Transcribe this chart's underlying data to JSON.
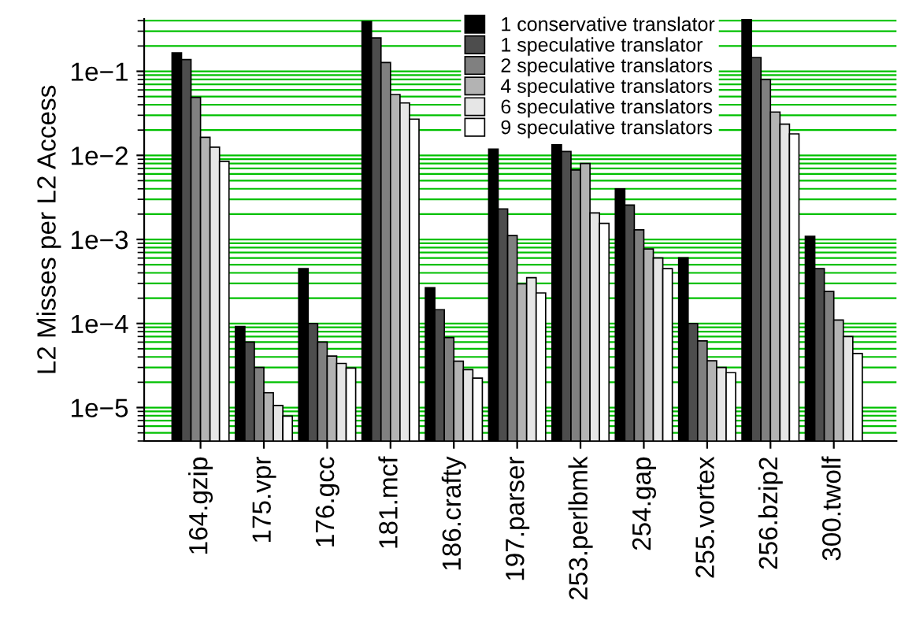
{
  "chart_data": {
    "type": "bar",
    "ylabel": "L2 Misses per L2 Access",
    "categories": [
      "164.gzip",
      "175.vpr",
      "176.gcc",
      "181.mcf",
      "186.crafty",
      "197.parser",
      "253.perlbmk",
      "254.gap",
      "255.vortex",
      "256.bzip2",
      "300.twolf"
    ],
    "series": [
      {
        "name": "1 conservative translator",
        "color": "#000000",
        "values": [
          0.166,
          9.2e-05,
          0.00045,
          0.39,
          0.000267,
          0.0119,
          0.0134,
          0.004,
          0.000605,
          0.42,
          0.00109
        ]
      },
      {
        "name": "1 speculative translator",
        "color": "#4d4d4d",
        "values": [
          0.138,
          6e-05,
          0.0001,
          0.25,
          0.000146,
          0.00231,
          0.0111,
          0.00256,
          0.0001,
          0.146,
          0.00045
        ]
      },
      {
        "name": "2 speculative translators",
        "color": "#808080",
        "values": [
          0.049,
          3e-05,
          6e-05,
          0.127,
          6.8e-05,
          0.00111,
          0.0067,
          0.0013,
          6.2e-05,
          0.08,
          0.00024
        ]
      },
      {
        "name": "4 speculative translators",
        "color": "#b3b3b3",
        "values": [
          0.0164,
          1.5e-05,
          4.1e-05,
          0.053,
          3.56e-05,
          0.000296,
          0.008,
          0.00077,
          3.6e-05,
          0.0328,
          0.00011
        ]
      },
      {
        "name": "6 speculative translators",
        "color": "#e6e6e6",
        "values": [
          0.0125,
          1.06e-05,
          3.35e-05,
          0.042,
          2.82e-05,
          0.00035,
          0.00207,
          0.0006,
          3e-05,
          0.0235,
          7e-05
        ]
      },
      {
        "name": "9 speculative translators",
        "color": "#ffffff",
        "values": [
          0.0085,
          7.9e-06,
          2.95e-05,
          0.027,
          2.24e-05,
          0.000231,
          0.00155,
          0.00045,
          2.6e-05,
          0.018,
          4.4e-05
        ]
      }
    ],
    "log": "y",
    "ylim": [
      4e-06,
      0.42
    ],
    "yticks": [
      {
        "value": 1e-05,
        "label": "1e−5"
      },
      {
        "value": 0.0001,
        "label": "1e−4"
      },
      {
        "value": 0.001,
        "label": "1e−3"
      },
      {
        "value": 0.01,
        "label": "1e−2"
      },
      {
        "value": 0.1,
        "label": "1e−1"
      }
    ],
    "grid": "y",
    "legend": "top right"
  }
}
